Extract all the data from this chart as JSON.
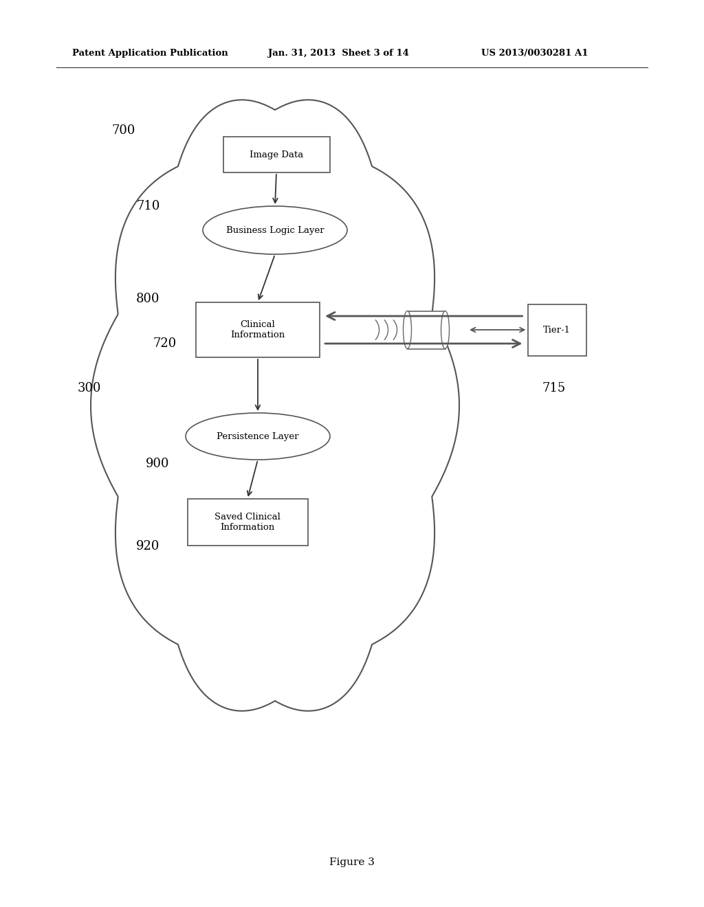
{
  "bg_color": "#ffffff",
  "header_left": "Patent Application Publication",
  "header_mid": "Jan. 31, 2013  Sheet 3 of 14",
  "header_right": "US 2013/0030281 A1",
  "figure_label": "Figure 3",
  "label_700": "700",
  "label_710": "710",
  "label_800": "800",
  "label_720": "720",
  "label_300": "300",
  "label_900": "900",
  "label_920": "920",
  "label_715": "715",
  "text_color": "#000000",
  "edge_color": "#555555",
  "font_size": 9,
  "label_font_size": 13
}
